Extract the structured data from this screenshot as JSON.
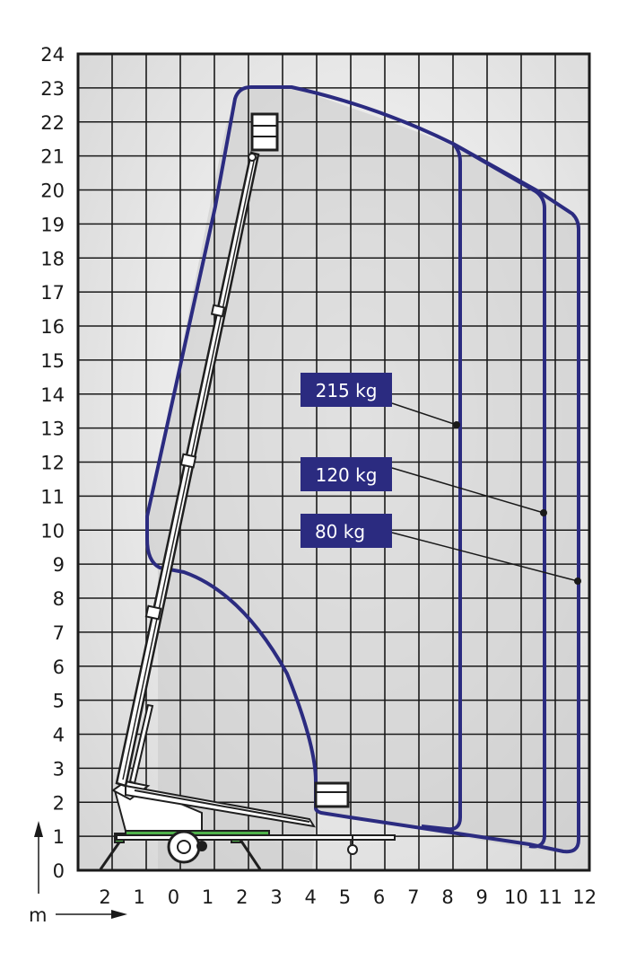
{
  "diagram": {
    "axis_unit": "m",
    "x_ticks": [
      "2",
      "1",
      "0",
      "1",
      "2",
      "3",
      "4",
      "5",
      "6",
      "7",
      "8",
      "9",
      "10",
      "11",
      "12"
    ],
    "y_ticks": [
      "0",
      "1",
      "2",
      "3",
      "4",
      "5",
      "6",
      "7",
      "8",
      "9",
      "10",
      "11",
      "12",
      "13",
      "14",
      "15",
      "16",
      "17",
      "18",
      "19",
      "20",
      "21",
      "22",
      "23",
      "24"
    ],
    "load_labels": [
      "215 kg",
      "120 kg",
      "80 kg"
    ],
    "colors": {
      "envelope": "#2b2b80",
      "label_bg": "#2b2b80",
      "grid": "#1a1a1a",
      "fill": "#cfcfcf",
      "machine": "#1f1f1f",
      "accent": "#4fb14a"
    }
  }
}
